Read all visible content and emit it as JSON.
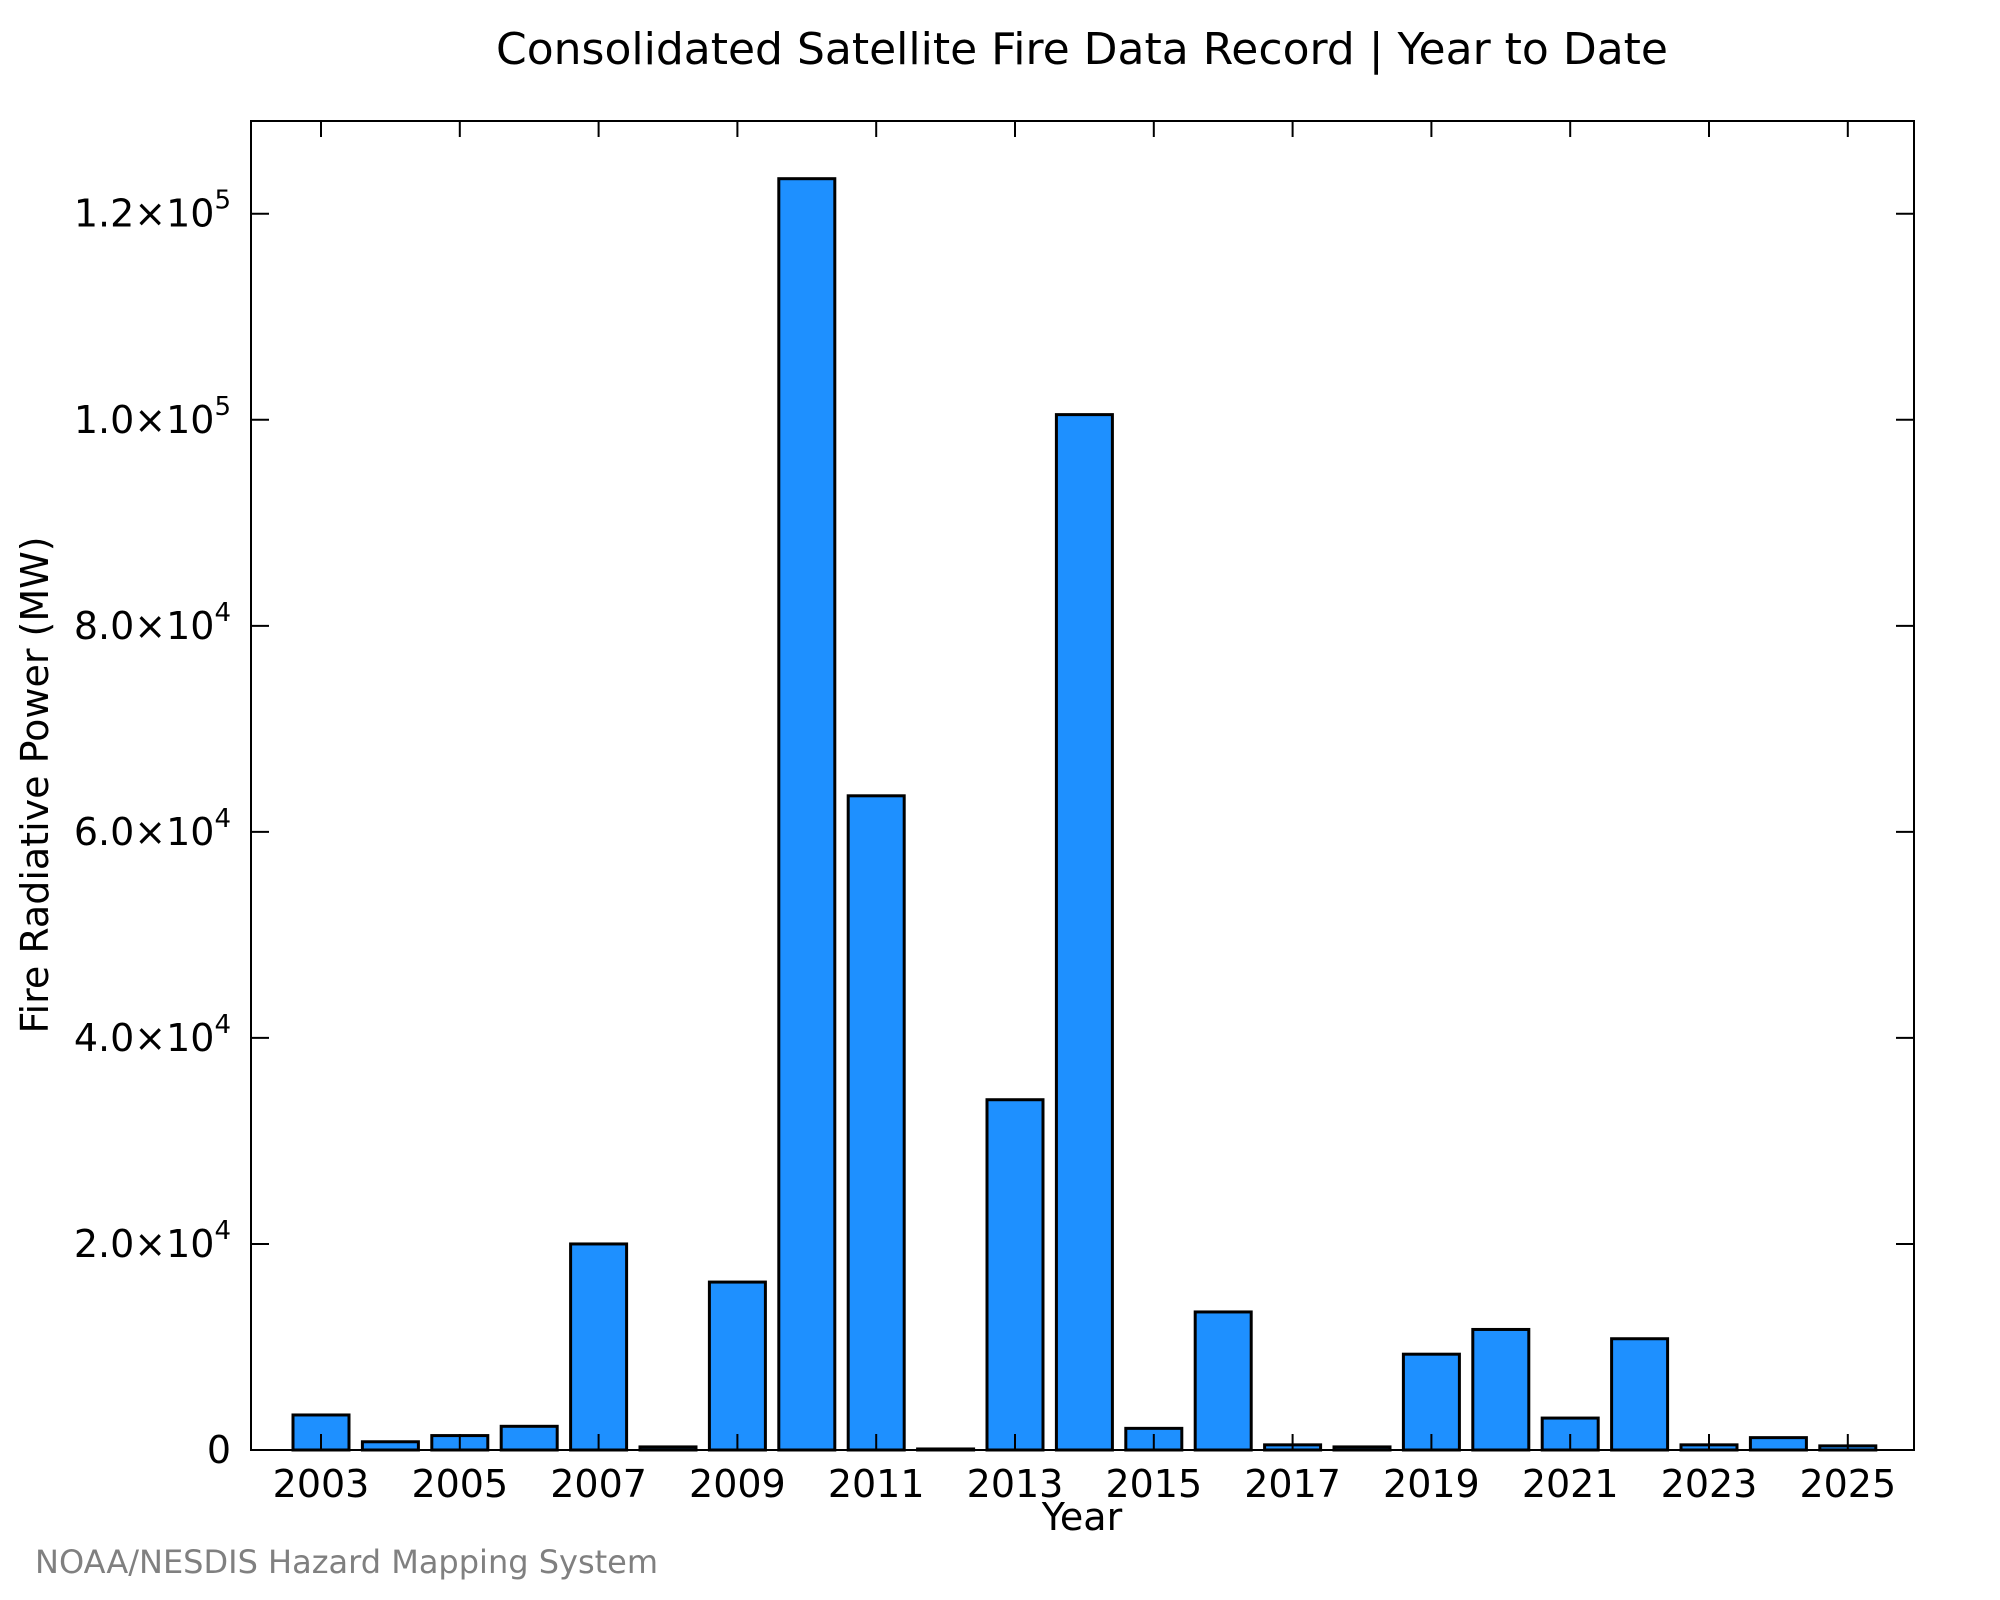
{
  "chart_data": {
    "type": "bar",
    "title": "Consolidated Satellite Fire Data Record | Year to Date",
    "xlabel": "Year",
    "ylabel": "Fire Radiative Power (MW)",
    "credit": "NOAA/NESDIS Hazard Mapping System",
    "ylim": [
      0,
      129000
    ],
    "y_ticks": [
      {
        "value": 0,
        "mantissa": "0",
        "exp": ""
      },
      {
        "value": 20000,
        "mantissa": "2.0×10",
        "exp": "4"
      },
      {
        "value": 40000,
        "mantissa": "4.0×10",
        "exp": "4"
      },
      {
        "value": 60000,
        "mantissa": "6.0×10",
        "exp": "4"
      },
      {
        "value": 80000,
        "mantissa": "8.0×10",
        "exp": "4"
      },
      {
        "value": 100000,
        "mantissa": "1.0×10",
        "exp": "5"
      },
      {
        "value": 120000,
        "mantissa": "1.2×10",
        "exp": "5"
      }
    ],
    "x_tick_labels": [
      "2003",
      "2005",
      "2007",
      "2009",
      "2011",
      "2013",
      "2015",
      "2017",
      "2019",
      "2021",
      "2023",
      "2025"
    ],
    "categories": [
      "2003",
      "2004",
      "2005",
      "2006",
      "2007",
      "2008",
      "2009",
      "2010",
      "2011",
      "2012",
      "2013",
      "2014",
      "2015",
      "2016",
      "2017",
      "2018",
      "2019",
      "2020",
      "2021",
      "2022",
      "2023",
      "2024",
      "2025"
    ],
    "values": [
      3400,
      800,
      1400,
      2300,
      20000,
      300,
      16300,
      123400,
      63500,
      100,
      34000,
      100500,
      2100,
      13400,
      500,
      300,
      9300,
      11700,
      3100,
      10800,
      500,
      1200,
      400
    ],
    "bar_color": "#1e90ff",
    "grid": false
  }
}
